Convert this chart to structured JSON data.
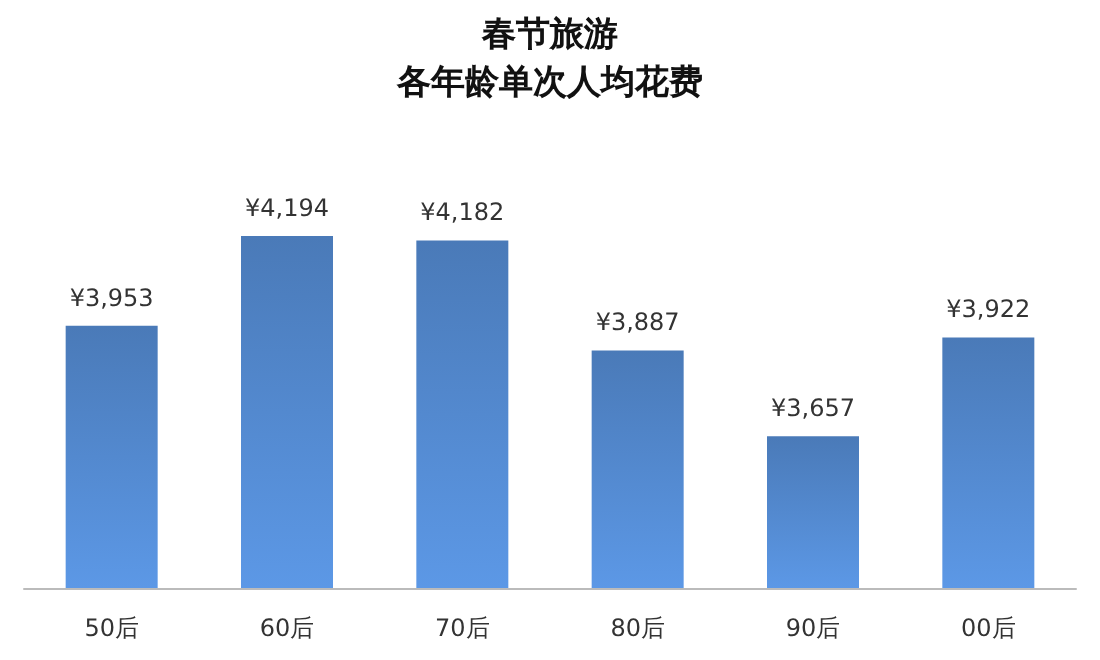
{
  "chart_data": {
    "type": "bar",
    "title": "春节旅游",
    "subtitle": "各年龄单次人均花费",
    "categories": [
      "50后",
      "60后",
      "70后",
      "80后",
      "90后",
      "00后"
    ],
    "values": [
      3953,
      4194,
      4182,
      3887,
      3657,
      3922
    ],
    "value_labels": [
      "¥3,953",
      "¥4,194",
      "¥4,182",
      "¥3,887",
      "¥3,657",
      "¥3,922"
    ],
    "color": "#4a7ab8",
    "ylim": [
      3250,
      4194
    ],
    "grid": false,
    "tick_labels": "x"
  }
}
